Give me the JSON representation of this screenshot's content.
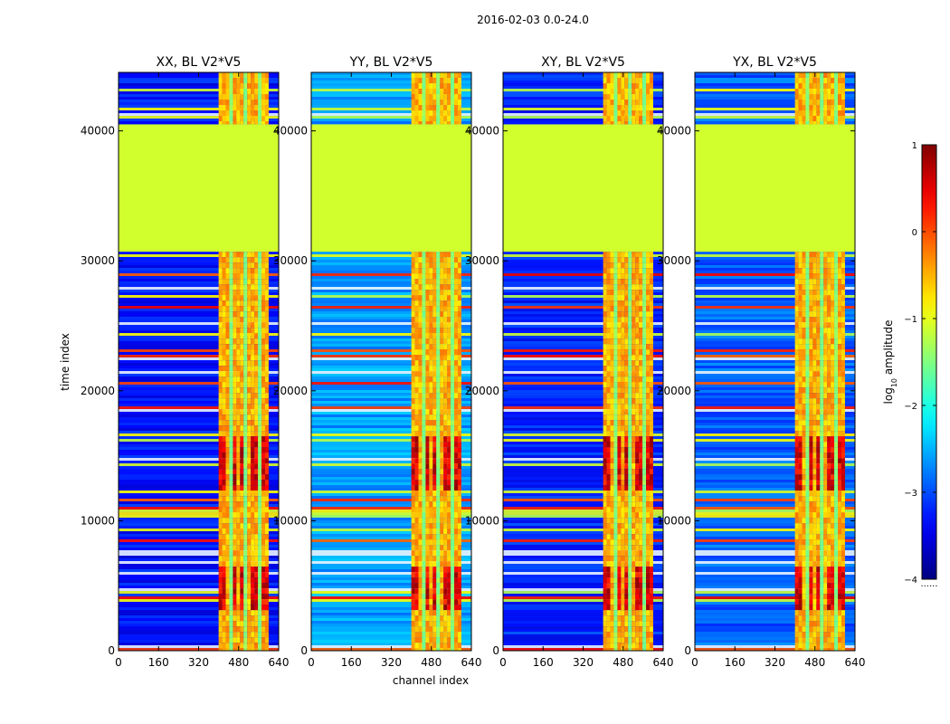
{
  "figure_title": "2016-02-03 0.0-24.0",
  "chart_data": {
    "type": "heatmap",
    "colormap": "jet",
    "xlabel": "channel index",
    "ylabel": "time index",
    "xlim": [
      0,
      640
    ],
    "ylim": [
      0,
      44500
    ],
    "xticks": [
      0,
      160,
      320,
      480,
      640
    ],
    "xtick_labels": [
      "0",
      "160",
      "320",
      "480",
      "640"
    ],
    "yticks": [
      0,
      10000,
      20000,
      30000,
      40000
    ],
    "ytick_labels": [
      "0",
      "10000",
      "20000",
      "30000",
      "40000"
    ],
    "gap_band": {
      "from": 30700,
      "to": 40500,
      "value": -1.1,
      "note": "flagged / constant region"
    },
    "bright_channel_range": [
      400,
      600
    ],
    "panels": [
      {
        "title": "XX, BL V2*V5",
        "bg_level": -3.3
      },
      {
        "title": "YY, BL V2*V5",
        "bg_level": -2.6
      },
      {
        "title": "XY, BL V2*V5",
        "bg_level": -3.2
      },
      {
        "title": "YX, BL V2*V5",
        "bg_level": -2.9
      }
    ],
    "colorbar": {
      "label": "log10 amplitude",
      "label_main": "log",
      "label_sub": "10",
      "label_tail": " amplitude",
      "range": [
        -4,
        1
      ],
      "ticks": [
        1,
        0,
        -1,
        -2,
        -3,
        -4
      ],
      "tick_labels": [
        "1",
        "0",
        "−1",
        "−2",
        "−3",
        "−4"
      ],
      "bottom_note": "......"
    }
  }
}
